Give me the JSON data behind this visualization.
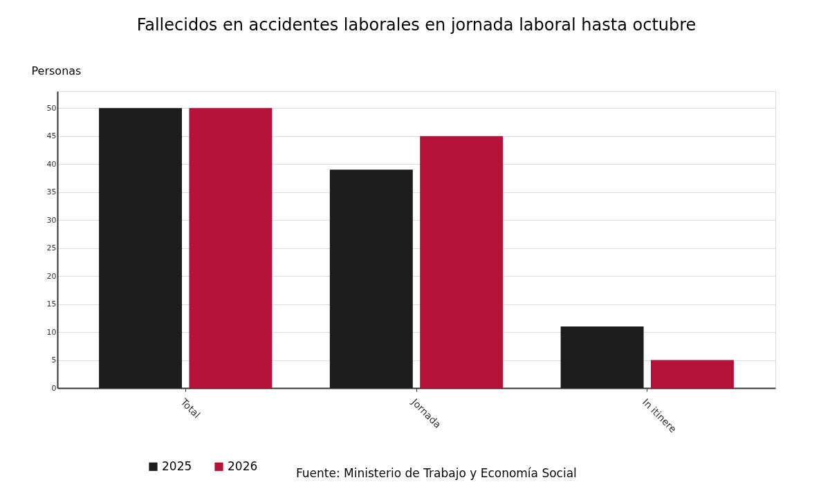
{
  "chart_data": {
    "type": "bar",
    "title": "Fallecidos en accidentes laborales en jornada laboral hasta octubre",
    "ylabel": "Personas",
    "categories": [
      "Total",
      "Jornada",
      "In itinere"
    ],
    "series": [
      {
        "name": "2025",
        "color": "#1c1c1c",
        "values": [
          50,
          39,
          11
        ]
      },
      {
        "name": "2026",
        "color": "#b5123a",
        "values": [
          50,
          45,
          5
        ]
      }
    ],
    "ylim": [
      0,
      53
    ],
    "yticks": [
      0,
      5,
      10,
      15,
      20,
      25,
      30,
      35,
      40,
      45,
      50
    ],
    "grid": "y",
    "legend": "bottom",
    "annotations": [
      "Fuente: Ministerio de Trabajo y Economía Social"
    ]
  }
}
